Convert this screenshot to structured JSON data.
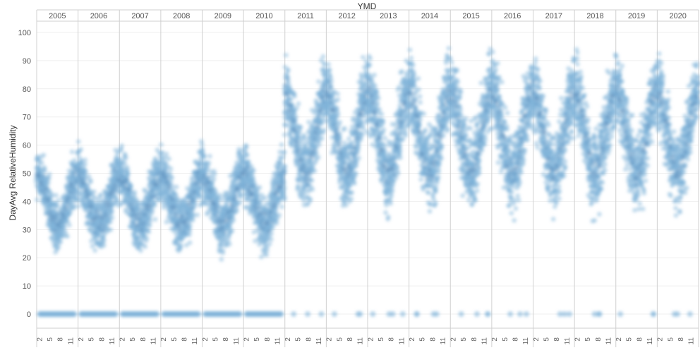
{
  "chart_data": {
    "type": "scatter",
    "title": "",
    "xlabel": "YMD",
    "ylabel": "DayAvg RelativeHumidity",
    "years": [
      "2005",
      "2006",
      "2007",
      "2008",
      "2009",
      "2010",
      "2011",
      "2012",
      "2013",
      "2014",
      "2015",
      "2016",
      "2017",
      "2018",
      "2019",
      "2020"
    ],
    "month_ticks": [
      "2",
      "5",
      "8",
      "11"
    ],
    "ylim": [
      -5,
      104
    ],
    "yticks": [
      0,
      10,
      20,
      30,
      40,
      50,
      60,
      70,
      80,
      90,
      100
    ],
    "grid": true,
    "legend": "none",
    "marker_color": "#7fb3d9",
    "dense_color": "#1f4e85",
    "series": [
      {
        "years": [
          "2005",
          "2006",
          "2007",
          "2008",
          "2009",
          "2010"
        ],
        "y_band_summer": [
          18,
          45
        ],
        "y_band_winter": [
          35,
          64
        ],
        "zero_days": "most"
      },
      {
        "years": [
          "2011",
          "2012",
          "2013",
          "2014",
          "2015",
          "2016",
          "2017",
          "2018",
          "2019",
          "2020"
        ],
        "y_band_summer": [
          30,
          70
        ],
        "y_band_winter": [
          60,
          98
        ],
        "zero_days": "occasional"
      }
    ]
  }
}
